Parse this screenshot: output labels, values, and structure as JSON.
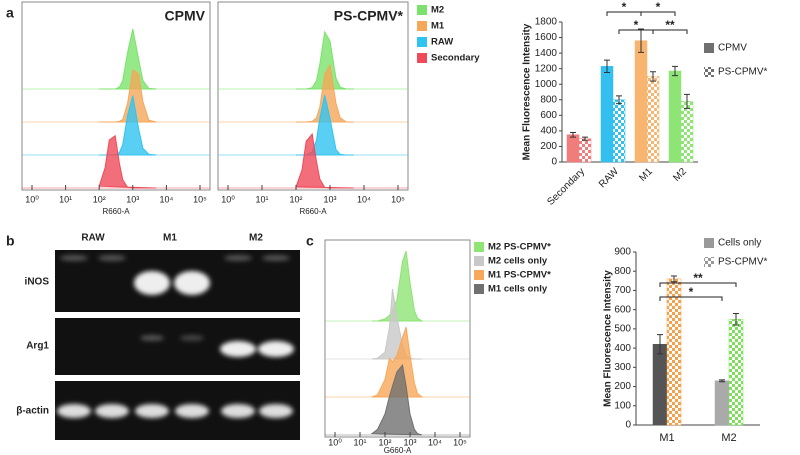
{
  "panels": [
    "a",
    "b",
    "c"
  ],
  "chart_data": [
    {
      "type": "area",
      "title": "CPMV",
      "x": [
        100,
        150,
        200,
        300,
        400,
        500,
        700,
        1000,
        1500,
        2000,
        3000,
        5000
      ],
      "xlim": [
        1,
        100000
      ],
      "log": true,
      "xticks": [
        {
          "value": 1,
          "label": "10⁰"
        },
        {
          "value": 10,
          "label": "10¹"
        },
        {
          "value": 100,
          "label": "10²"
        },
        {
          "value": 1000,
          "label": "10³"
        },
        {
          "value": 10000,
          "label": "10⁴"
        },
        {
          "value": 100000,
          "label": "10⁵"
        }
      ],
      "xlabel": "R660-A",
      "series": [
        {
          "color": "#7be36b",
          "values": [
            0,
            0,
            0,
            0,
            3,
            14,
            61,
            100,
            49,
            14,
            1,
            0
          ]
        },
        {
          "color": "#f5a85a",
          "values": [
            0,
            0,
            0,
            0,
            1,
            4,
            31,
            87,
            80,
            34,
            3,
            0
          ]
        },
        {
          "color": "#2fc4f0",
          "values": [
            0,
            0,
            0,
            0,
            4,
            17,
            66,
            99,
            43,
            11,
            1,
            0
          ]
        },
        {
          "color": "#f04a5a",
          "values": [
            3,
            34,
            80,
            87,
            41,
            14,
            1,
            0,
            0,
            0,
            0,
            0
          ]
        }
      ]
    },
    {
      "type": "area",
      "title": "PS-CPMV*",
      "x": [
        100,
        150,
        200,
        300,
        400,
        500,
        700,
        1000,
        1500,
        2000,
        3000,
        5000
      ],
      "xlim": [
        1,
        100000
      ],
      "log": true,
      "xticks": [
        {
          "value": 1,
          "label": "10⁰"
        },
        {
          "value": 10,
          "label": "10¹"
        },
        {
          "value": 100,
          "label": "10²"
        },
        {
          "value": 1000,
          "label": "10³"
        },
        {
          "value": 10000,
          "label": "10⁴"
        },
        {
          "value": 100000,
          "label": "10⁵"
        }
      ],
      "xlabel": "R660-A",
      "legend": true,
      "series": [
        {
          "name": "M2",
          "color": "#7be36b",
          "values": [
            0,
            0,
            0,
            2,
            14,
            41,
            95,
            80,
            18,
            3,
            0,
            0
          ]
        },
        {
          "name": "M1",
          "color": "#f5a85a",
          "values": [
            0,
            0,
            0,
            1,
            7,
            25,
            80,
            95,
            31,
            7,
            0,
            0
          ]
        },
        {
          "name": "RAW",
          "color": "#2fc4f0",
          "values": [
            0,
            0,
            0,
            5,
            25,
            61,
            100,
            61,
            9,
            1,
            0,
            0
          ]
        },
        {
          "name": "Secondary",
          "color": "#f04a5a",
          "values": [
            2,
            30,
            78,
            90,
            44,
            15,
            1,
            0,
            0,
            0,
            0,
            0
          ]
        }
      ]
    },
    {
      "type": "bar",
      "ylabel": "Mean Fluorescence Intensity",
      "categories": [
        "Secondary",
        "RAW",
        "M1",
        "M2"
      ],
      "ylim": [
        0,
        1800
      ],
      "yticks": [
        0,
        200,
        400,
        600,
        800,
        1000,
        1200,
        1400,
        1600,
        1800
      ],
      "series": [
        {
          "name": "CPMV",
          "color": "#707070",
          "pattern": "solid",
          "bar_colors": [
            "#f07c7c",
            "#33bff0",
            "#f8b570",
            "#8ee474"
          ],
          "values": [
            350,
            1230,
            1560,
            1170
          ],
          "errors": [
            30,
            80,
            150,
            60
          ]
        },
        {
          "name": "PS-CPMV*",
          "color": "#707070",
          "pattern": "checker",
          "bar_colors": [
            "#f07c7c",
            "#33bff0",
            "#f8b570",
            "#8ee474"
          ],
          "values": [
            300,
            800,
            1100,
            780
          ],
          "errors": [
            20,
            50,
            60,
            90
          ]
        }
      ],
      "annotations": [
        "*",
        "*",
        "*",
        "**"
      ]
    },
    {
      "type": "area",
      "x": [
        30,
        50,
        100,
        150,
        200,
        300,
        500,
        700,
        1000,
        1500,
        2000,
        3000
      ],
      "xlim": [
        1,
        100000
      ],
      "log": true,
      "xticks": [
        {
          "value": 1,
          "label": "10⁰"
        },
        {
          "value": 10,
          "label": "10¹"
        },
        {
          "value": 100,
          "label": "10²"
        },
        {
          "value": 1000,
          "label": "10³"
        },
        {
          "value": 10000,
          "label": "10⁴"
        },
        {
          "value": 100000,
          "label": "10⁵"
        }
      ],
      "xlabel": "G660-A",
      "legend": true,
      "series": [
        {
          "name": "M2 PS-CPMV*",
          "color": "#8ee474",
          "values": [
            0,
            0,
            3,
            8,
            15,
            30,
            85,
            100,
            55,
            15,
            4,
            0
          ]
        },
        {
          "name": "M2 cells only",
          "color": "#c8c8c8",
          "values": [
            0,
            1,
            10,
            45,
            100,
            60,
            20,
            5,
            1,
            0,
            0,
            0
          ]
        },
        {
          "name": "M1 PS-CPMV*",
          "color": "#f8a85a",
          "values": [
            0,
            3,
            25,
            55,
            50,
            60,
            85,
            100,
            60,
            20,
            5,
            0
          ]
        },
        {
          "name": "M1 cells only",
          "color": "#707070",
          "values": [
            2,
            8,
            30,
            55,
            70,
            90,
            100,
            70,
            30,
            8,
            2,
            0
          ]
        }
      ]
    },
    {
      "type": "bar",
      "ylabel": "Mean Fluorescence Intensity",
      "categories": [
        "M1",
        "M2"
      ],
      "ylim": [
        0,
        900
      ],
      "yticks": [
        0,
        100,
        200,
        300,
        400,
        500,
        600,
        700,
        800,
        900
      ],
      "series": [
        {
          "name": "Cells only",
          "color": "#999999",
          "pattern": "solid",
          "bar_colors": [
            "#555555",
            "#aaaaaa"
          ],
          "values": [
            420,
            230
          ],
          "errors": [
            50,
            5
          ]
        },
        {
          "name": "PS-CPMV*",
          "color": "#999999",
          "pattern": "checker",
          "bar_colors": [
            "#f7a04b",
            "#7ee05a"
          ],
          "values": [
            760,
            550
          ],
          "errors": [
            15,
            30
          ]
        }
      ],
      "annotations": [
        "*",
        "**"
      ]
    }
  ],
  "gel": {
    "lanes": [
      "RAW",
      "M1",
      "M2"
    ],
    "rows": [
      "iNOS",
      "Arg1",
      "β-actin"
    ]
  }
}
